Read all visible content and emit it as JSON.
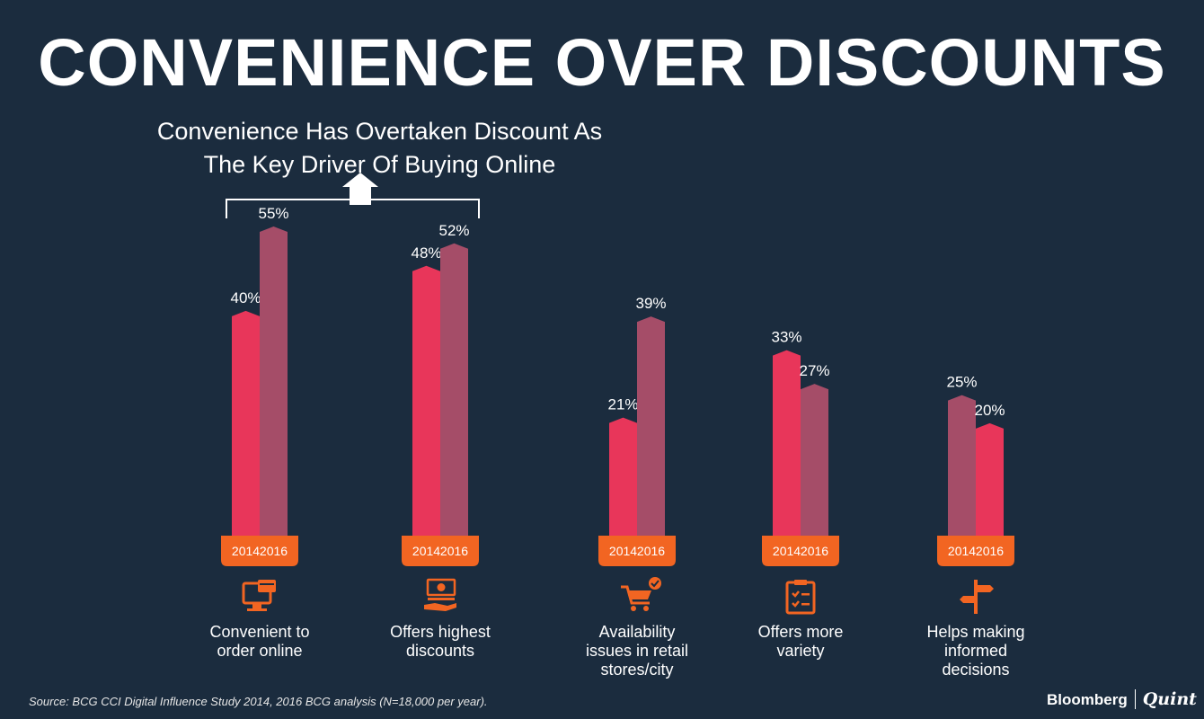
{
  "title": "CONVENIENCE OVER DISCOUNTS",
  "subtitle": {
    "line1": "Convenience Has Overtaken Discount As",
    "line2": "The Key Driver Of Buying Online"
  },
  "colors": {
    "background": "#1b2c3e",
    "bar_2014": "#e8365a",
    "bar_2016": "#a54d68",
    "year_badge": "#f26522",
    "icon": "#f26522",
    "text": "#ffffff"
  },
  "chart_data": {
    "type": "bar",
    "title": "Convenience Has Overtaken Discount As The Key Driver Of Buying Online",
    "categories": [
      "Convenient to order online",
      "Offers highest discounts",
      "Availability issues in retail stores/city",
      "Offers more variety",
      "Helps making informed decisions"
    ],
    "category_lines": [
      [
        "Convenient to",
        "order online"
      ],
      [
        "Offers highest",
        "discounts"
      ],
      [
        "Availability",
        "issues in retail",
        "stores/city"
      ],
      [
        "Offers more",
        "variety"
      ],
      [
        "Helps making",
        "informed",
        "decisions"
      ]
    ],
    "icons": [
      "computer-card-icon",
      "money-hand-icon",
      "shopping-cart-icon",
      "clipboard-checklist-icon",
      "signpost-icon"
    ],
    "series": [
      {
        "name": "2014",
        "values": [
          40,
          48,
          21,
          33,
          25
        ],
        "labels": [
          "40%",
          "48%",
          "21%",
          "33%",
          "25%"
        ]
      },
      {
        "name": "2016",
        "values": [
          55,
          52,
          39,
          27,
          20
        ],
        "labels": [
          "55%",
          "52%",
          "39%",
          "27%",
          "20%"
        ]
      }
    ],
    "unit": "%",
    "ylim": [
      0,
      60
    ],
    "xlabel": "",
    "ylabel": "",
    "grid": false
  },
  "source": "Source: BCG CCI Digital Influence Study 2014, 2016 BCG analysis (N=18,000 per year).",
  "brand": {
    "name1": "Bloomberg",
    "name2": "Quint"
  }
}
